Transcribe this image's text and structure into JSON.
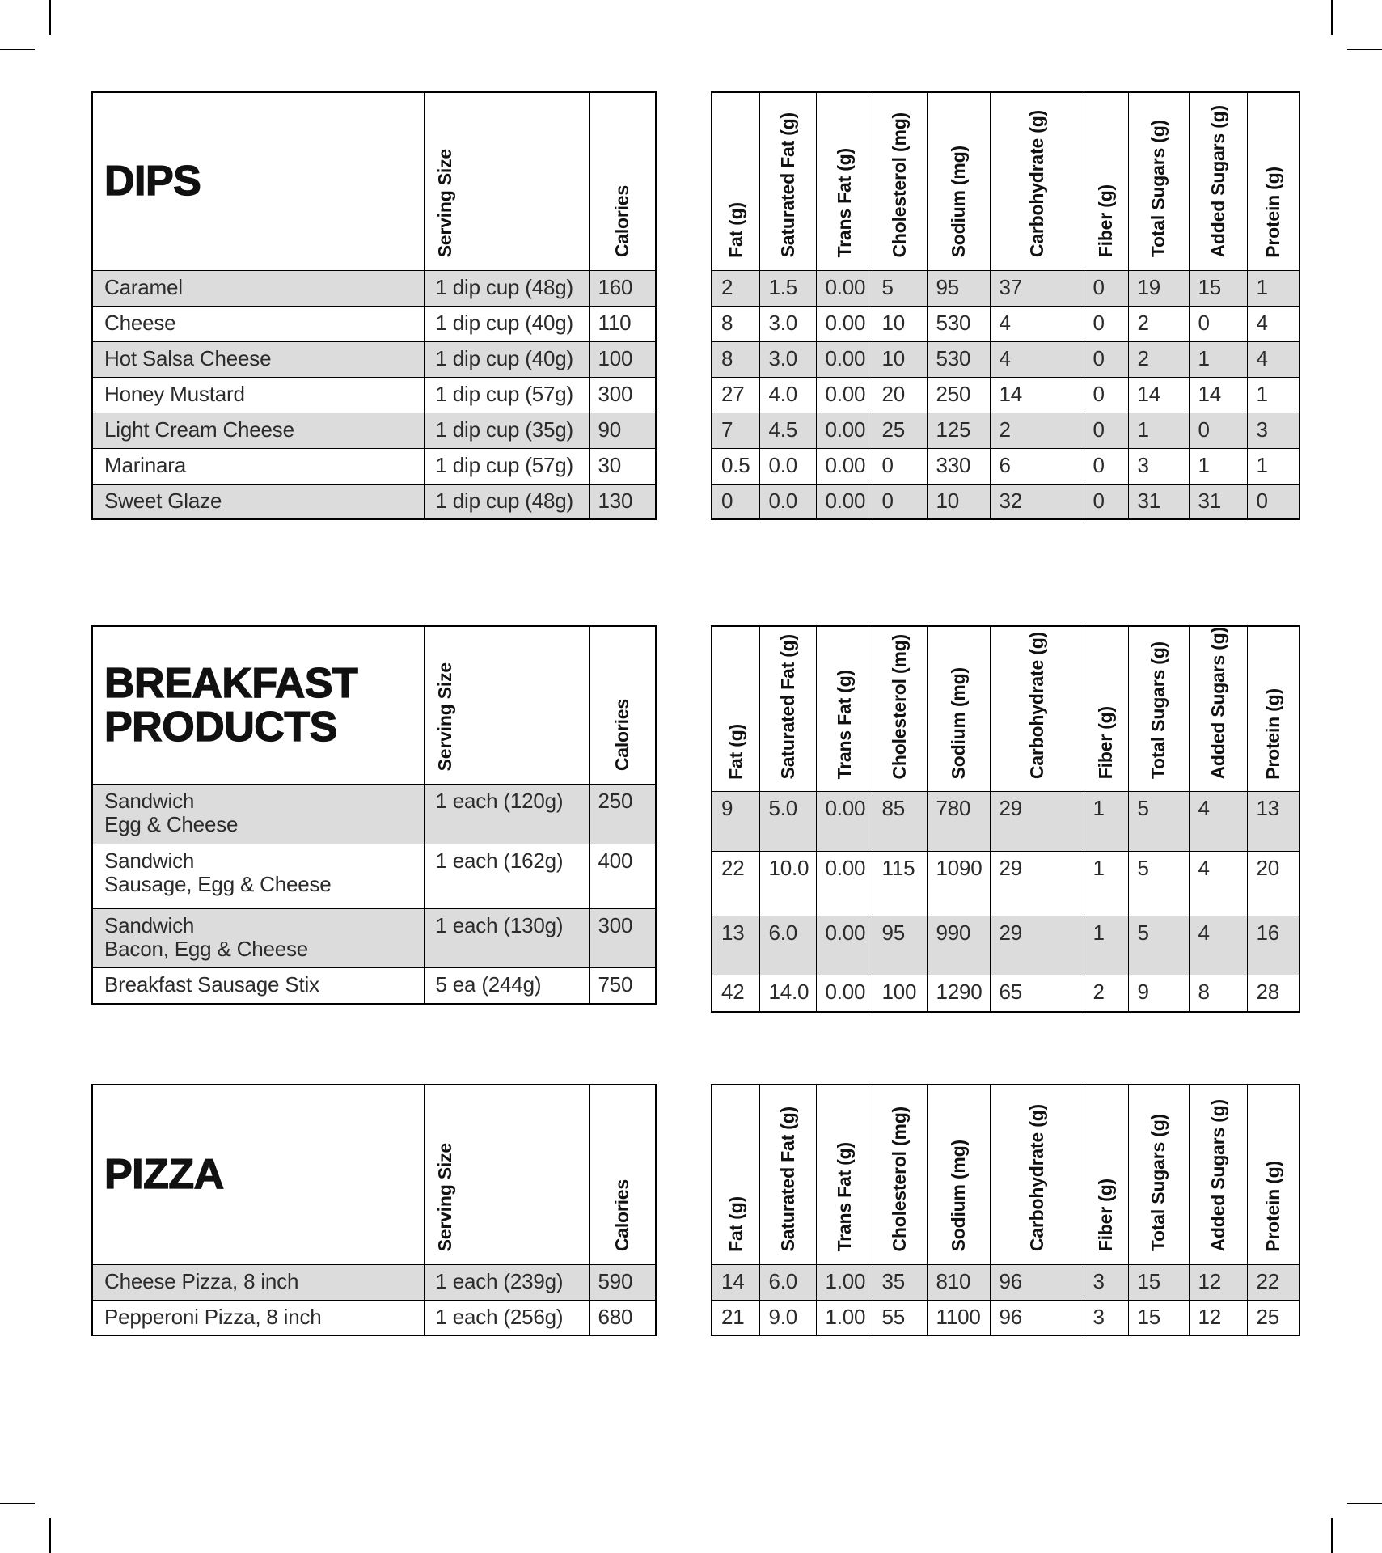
{
  "labels": {
    "serving_size": "Serving Size",
    "calories": "Calories"
  },
  "nutrition_columns": [
    "Fat (g)",
    "Saturated Fat (g)",
    "Trans Fat (g)",
    "Cholesterol (mg)",
    "Sodium (mg)",
    "Carbohydrate (g)",
    "Fiber (g)",
    "Total Sugars (g)",
    "Added Sugars (g)",
    "Protein (g)"
  ],
  "sections": [
    {
      "title": "DIPS",
      "rows": [
        {
          "item": "Caramel",
          "item_line2": "",
          "serving_size": "1 dip cup (48g)",
          "calories": "160",
          "values": [
            "2",
            "1.5",
            "0.00",
            "5",
            "95",
            "37",
            "0",
            "19",
            "15",
            "1"
          ]
        },
        {
          "item": "Cheese",
          "item_line2": "",
          "serving_size": "1 dip cup (40g)",
          "calories": "110",
          "values": [
            "8",
            "3.0",
            "0.00",
            "10",
            "530",
            "4",
            "0",
            "2",
            "0",
            "4"
          ]
        },
        {
          "item": "Hot Salsa Cheese",
          "item_line2": "",
          "serving_size": "1 dip cup (40g)",
          "calories": "100",
          "values": [
            "8",
            "3.0",
            "0.00",
            "10",
            "530",
            "4",
            "0",
            "2",
            "1",
            "4"
          ]
        },
        {
          "item": "Honey Mustard",
          "item_line2": "",
          "serving_size": "1 dip cup (57g)",
          "calories": "300",
          "values": [
            "27",
            "4.0",
            "0.00",
            "20",
            "250",
            "14",
            "0",
            "14",
            "14",
            "1"
          ]
        },
        {
          "item": "Light Cream Cheese",
          "item_line2": "",
          "serving_size": "1 dip cup (35g)",
          "calories": "90",
          "values": [
            "7",
            "4.5",
            "0.00",
            "25",
            "125",
            "2",
            "0",
            "1",
            "0",
            "3"
          ]
        },
        {
          "item": "Marinara",
          "item_line2": "",
          "serving_size": "1 dip cup (57g)",
          "calories": "30",
          "values": [
            "0.5",
            "0.0",
            "0.00",
            "0",
            "330",
            "6",
            "0",
            "3",
            "1",
            "1"
          ]
        },
        {
          "item": "Sweet Glaze",
          "item_line2": "",
          "serving_size": "1 dip cup (48g)",
          "calories": "130",
          "values": [
            "0",
            "0.0",
            "0.00",
            "0",
            "10",
            "32",
            "0",
            "31",
            "31",
            "0"
          ]
        }
      ]
    },
    {
      "title": "BREAKFAST PRODUCTS",
      "rows": [
        {
          "item": "Sandwich",
          "item_line2": "Egg & Cheese",
          "serving_size": "1 each (120g)",
          "calories": "250",
          "values": [
            "9",
            "5.0",
            "0.00",
            "85",
            "780",
            "29",
            "1",
            "5",
            "4",
            "13"
          ]
        },
        {
          "item": "Sandwich",
          "item_line2": "Sausage, Egg & Cheese",
          "serving_size": "1 each (162g)",
          "calories": "400",
          "values": [
            "22",
            "10.0",
            "0.00",
            "115",
            "1090",
            "29",
            "1",
            "5",
            "4",
            "20"
          ]
        },
        {
          "item": "Sandwich",
          "item_line2": "Bacon, Egg & Cheese",
          "serving_size": "1 each (130g)",
          "calories": "300",
          "values": [
            "13",
            "6.0",
            "0.00",
            "95",
            "990",
            "29",
            "1",
            "5",
            "4",
            "16"
          ]
        },
        {
          "item": "Breakfast Sausage Stix",
          "item_line2": "",
          "serving_size": "5 ea (244g)",
          "calories": "750",
          "values": [
            "42",
            "14.0",
            "0.00",
            "100",
            "1290",
            "65",
            "2",
            "9",
            "8",
            "28"
          ]
        }
      ]
    },
    {
      "title": "PIZZA",
      "rows": [
        {
          "item": "Cheese Pizza, 8 inch",
          "item_line2": "",
          "serving_size": "1 each (239g)",
          "calories": "590",
          "values": [
            "14",
            "6.0",
            "1.00",
            "35",
            "810",
            "96",
            "3",
            "15",
            "12",
            "22"
          ]
        },
        {
          "item": "Pepperoni Pizza, 8 inch",
          "item_line2": "",
          "serving_size": "1 each (256g)",
          "calories": "680",
          "values": [
            "21",
            "9.0",
            "1.00",
            "55",
            "1100",
            "96",
            "3",
            "15",
            "12",
            "25"
          ]
        }
      ]
    }
  ],
  "colors": {
    "stripe": "#dcdcdc",
    "border": "#000000",
    "text": "#222222",
    "background": "#ffffff"
  }
}
